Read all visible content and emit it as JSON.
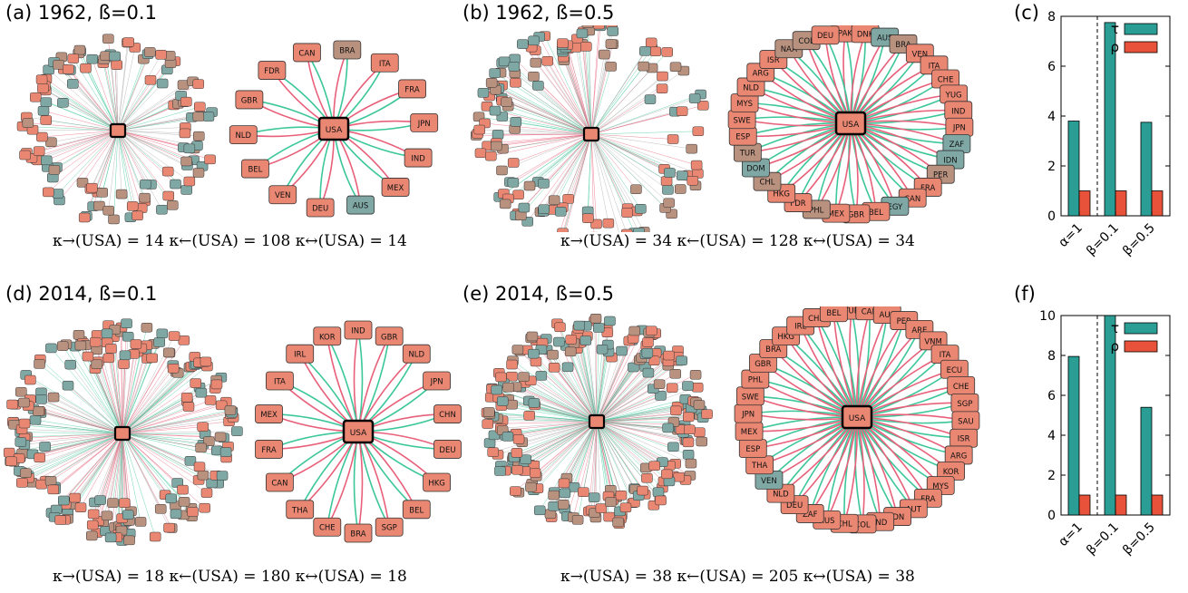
{
  "colors": {
    "green_edge": "#3cc79a",
    "pink_edge": "#e8607a",
    "gray_edge": "#a9a9a9",
    "node_orange": "#ea8772",
    "node_teal": "#7fa8a5",
    "node_tan": "#b9917f",
    "bar_tau": "#2a9d94",
    "bar_rho": "#e8513a"
  },
  "panels": [
    {
      "id": "a",
      "title": "(a) 1962, ß=0.1",
      "kappa": "κ→(USA) = 14   κ←(USA) = 108   κ↔(USA) = 14",
      "center": "USA",
      "neighbors": [
        "CAN",
        "BRA",
        "ITA",
        "FRA",
        "JPN",
        "IND",
        "MEX",
        "AUS",
        "DEU",
        "VEN",
        "BEL",
        "NLD",
        "GBR",
        "FDR"
      ],
      "neighbor_colors": [
        "o",
        "t",
        "o",
        "o",
        "o",
        "o",
        "o",
        "g",
        "o",
        "o",
        "o",
        "o",
        "o",
        "o"
      ]
    },
    {
      "id": "b",
      "title": "(b) 1962, ß=0.5",
      "kappa": "κ→(USA) = 34   κ←(USA) = 128   κ↔(USA) = 34",
      "center": "USA",
      "neighbors": [
        "PAK",
        "DNK",
        "AUS",
        "BRA",
        "VEN",
        "ITA",
        "CHE",
        "YUG",
        "IND",
        "JPN",
        "ZAF",
        "IDN",
        "PER",
        "FRA",
        "CAN",
        "EGY",
        "BEL",
        "GBR",
        "MEX",
        "PHL",
        "FDR",
        "HKG",
        "CHL",
        "DOM",
        "TUR",
        "ESP",
        "SWE",
        "MYS",
        "NLD",
        "ARG",
        "ISR",
        "NAA",
        "COL",
        "DEU"
      ],
      "neighbor_colors": [
        "o",
        "o",
        "g",
        "t",
        "o",
        "o",
        "o",
        "o",
        "o",
        "o",
        "g",
        "g",
        "t",
        "o",
        "o",
        "g",
        "o",
        "o",
        "o",
        "t",
        "o",
        "o",
        "t",
        "g",
        "t",
        "o",
        "o",
        "o",
        "o",
        "o",
        "o",
        "t",
        "t",
        "o"
      ]
    },
    {
      "id": "d",
      "title": "(d) 2014, ß=0.1",
      "kappa": "κ→(USA) = 18   κ←(USA) = 180   κ↔(USA) = 18",
      "center": "USA",
      "neighbors": [
        "IND",
        "GBR",
        "NLD",
        "JPN",
        "CHN",
        "DEU",
        "HKG",
        "BEL",
        "SGP",
        "BRA",
        "CHE",
        "THA",
        "CAN",
        "FRA",
        "MEX",
        "ITA",
        "IRL",
        "KOR"
      ],
      "neighbor_colors": [
        "o",
        "o",
        "o",
        "o",
        "o",
        "o",
        "o",
        "o",
        "o",
        "o",
        "o",
        "o",
        "o",
        "o",
        "o",
        "o",
        "o",
        "o"
      ]
    },
    {
      "id": "e",
      "title": "(e) 2014, ß=0.5",
      "kappa": "κ→(USA) = 38   κ←(USA) = 205   κ↔(USA) = 38",
      "center": "USA",
      "neighbors": [
        "TUR",
        "CAN",
        "AUS",
        "PER",
        "ARE",
        "VNM",
        "ITA",
        "ECU",
        "CHE",
        "SGP",
        "SAU",
        "ISR",
        "ARG",
        "KOR",
        "MYS",
        "FRA",
        "AUT",
        "IDN",
        "IND",
        "COL",
        "CHL",
        "RUS",
        "ZAF",
        "DEU",
        "NLD",
        "VEN",
        "THA",
        "ESP",
        "MEX",
        "JPN",
        "SWE",
        "PHL",
        "GBR",
        "BRA",
        "HKG",
        "IRL",
        "CHN",
        "BEL"
      ],
      "neighbor_colors": [
        "o",
        "o",
        "o",
        "o",
        "o",
        "o",
        "o",
        "o",
        "o",
        "o",
        "o",
        "o",
        "o",
        "o",
        "o",
        "o",
        "o",
        "o",
        "o",
        "o",
        "o",
        "o",
        "o",
        "o",
        "o",
        "g",
        "o",
        "o",
        "o",
        "o",
        "o",
        "o",
        "o",
        "o",
        "o",
        "o",
        "o",
        "o"
      ]
    }
  ],
  "bar_charts": [
    {
      "id": "c",
      "label": "(c)",
      "chart_data": {
        "type": "bar",
        "categories": [
          "α=1",
          "β=0.1",
          "β=0.5"
        ],
        "series": [
          {
            "name": "τ",
            "values": [
              3.8,
              7.75,
              3.75
            ]
          },
          {
            "name": "ρ",
            "values": [
              1.0,
              1.0,
              1.0
            ]
          }
        ],
        "ylim": [
          0,
          8
        ],
        "yticks": [
          "0",
          "2",
          "4",
          "6",
          "8"
        ],
        "legend": "top-right",
        "divider": "dashed line between α=1 and β=0.1"
      }
    },
    {
      "id": "f",
      "label": "(f)",
      "chart_data": {
        "type": "bar",
        "categories": [
          "α=1",
          "β=0.1",
          "β=0.5"
        ],
        "series": [
          {
            "name": "τ",
            "values": [
              7.95,
              10.0,
              5.4
            ]
          },
          {
            "name": "ρ",
            "values": [
              1.0,
              1.0,
              1.0
            ]
          }
        ],
        "ylim": [
          0,
          10
        ],
        "yticks": [
          "0",
          "2",
          "4",
          "6",
          "8",
          "10"
        ],
        "legend": "top-right",
        "divider": "dashed line between α=1 and β=0.1"
      }
    }
  ]
}
